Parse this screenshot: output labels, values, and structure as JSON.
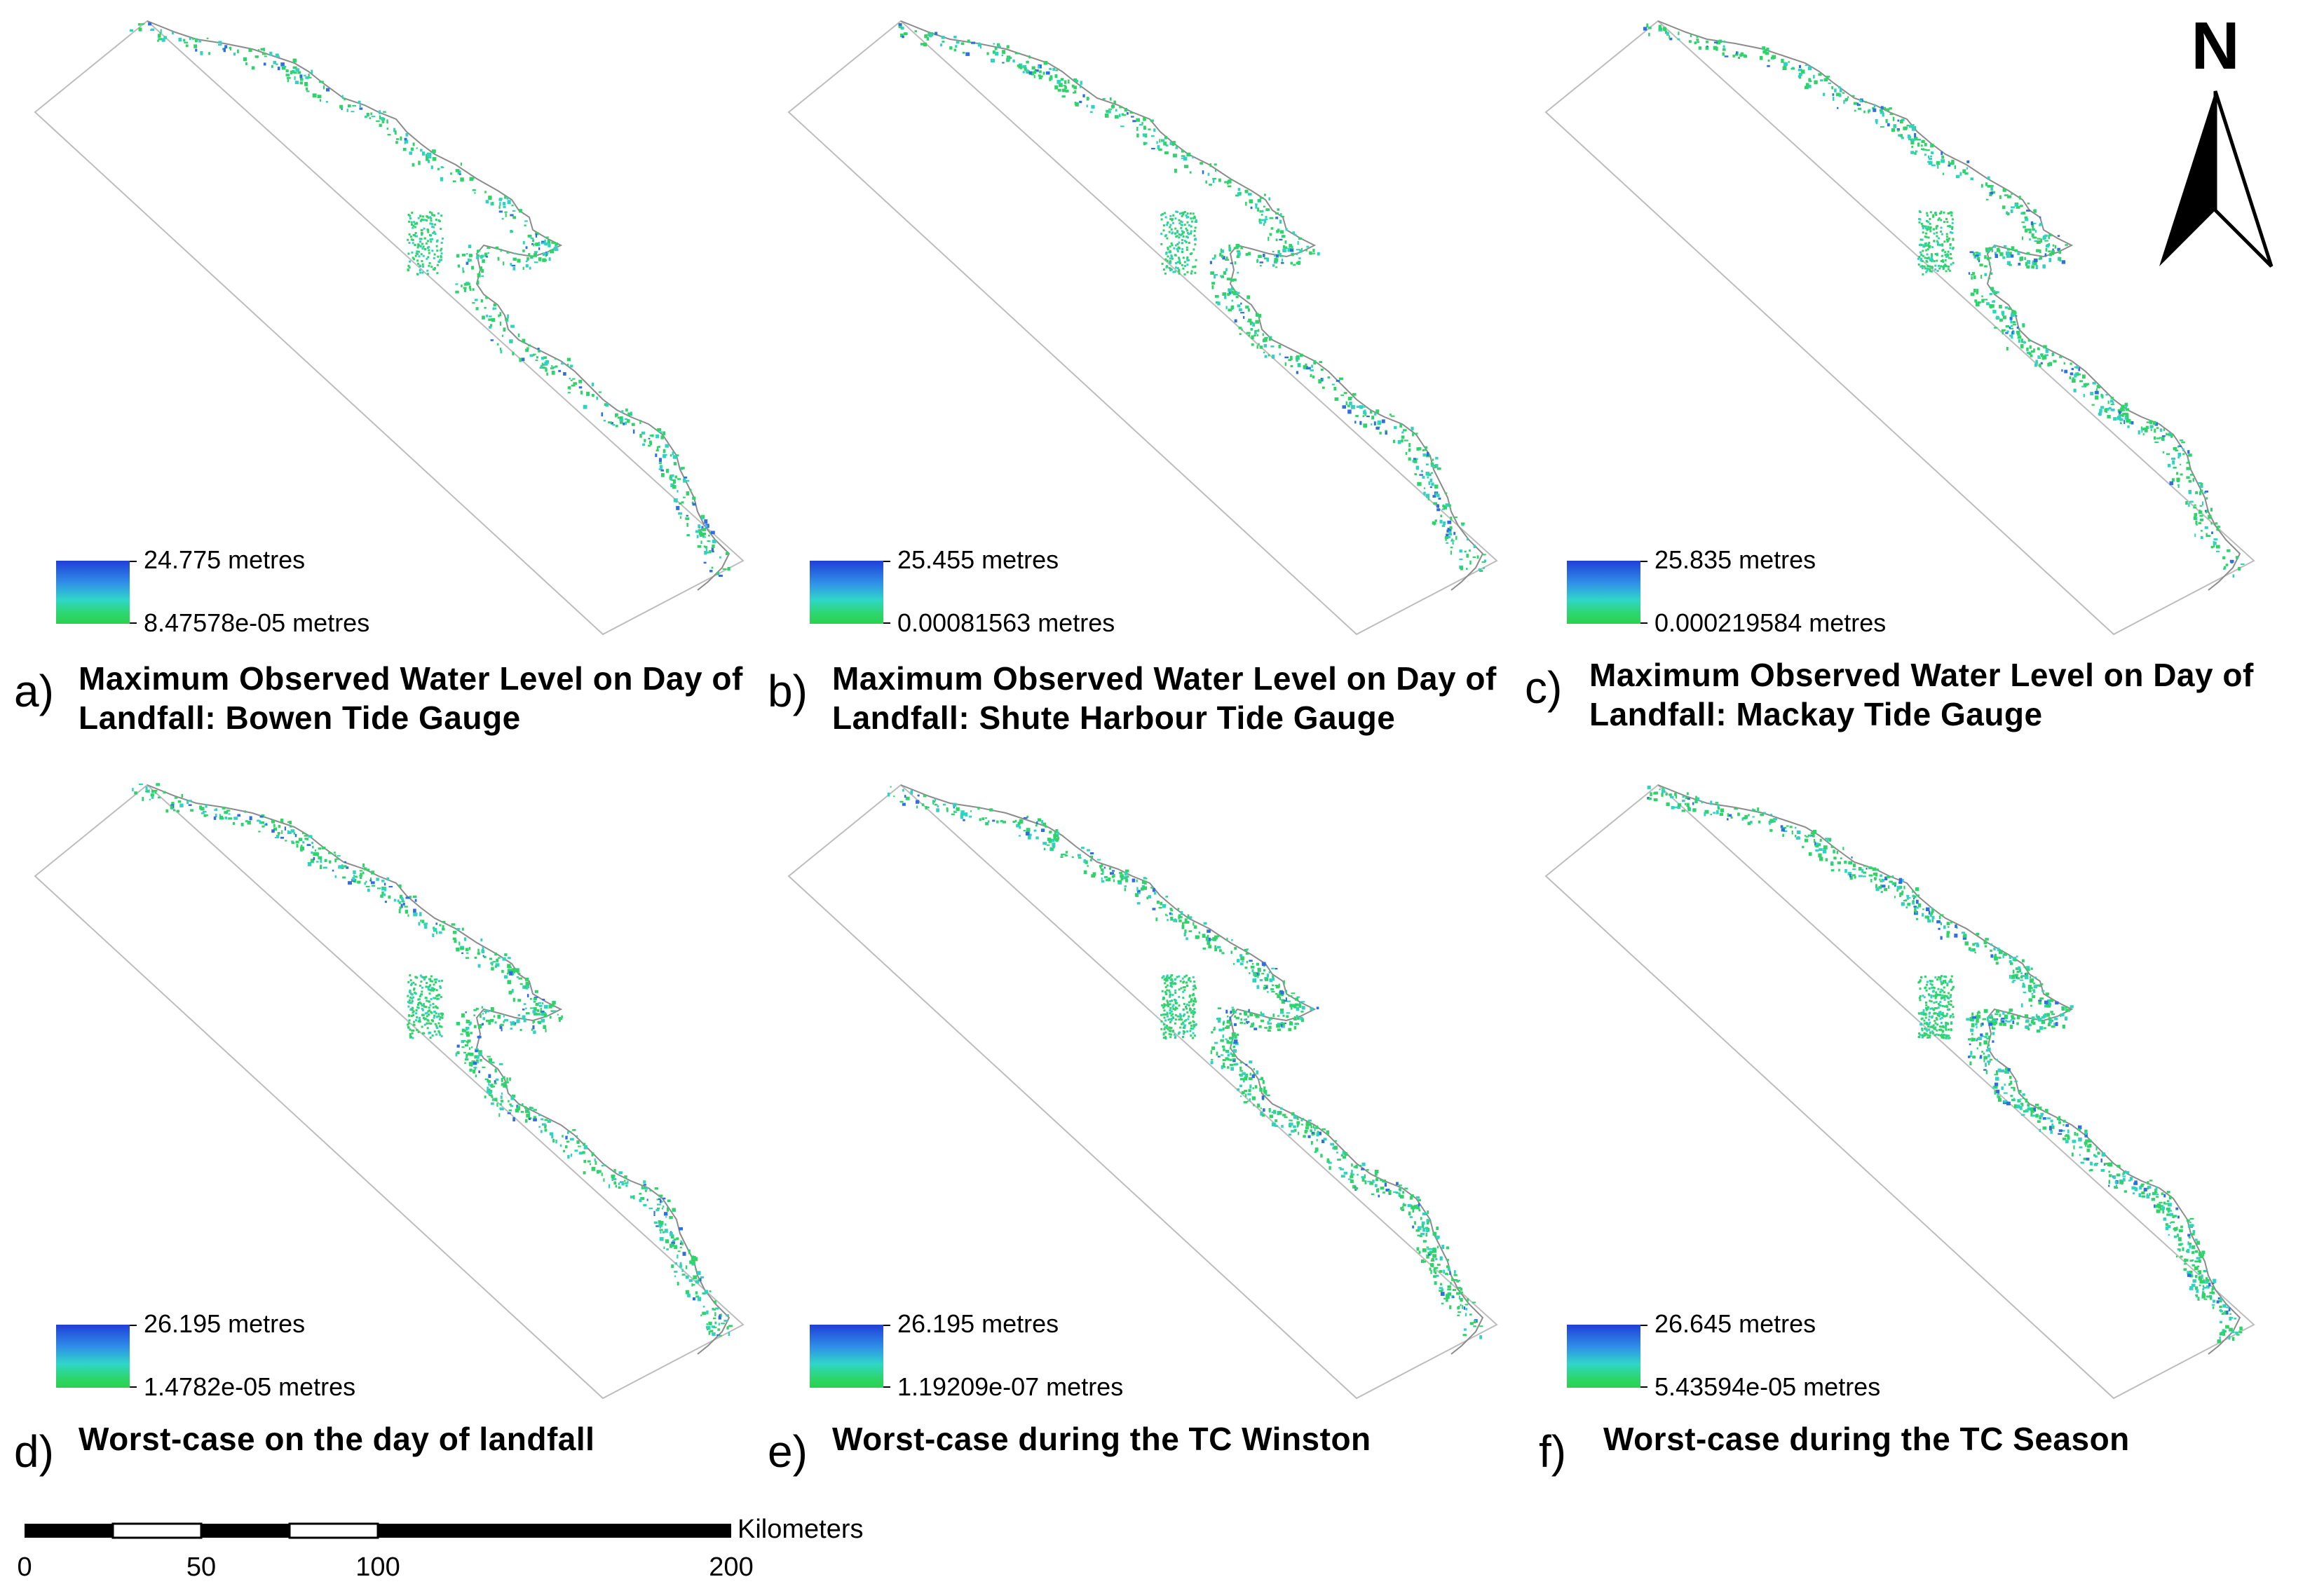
{
  "north_arrow": {
    "label": "N"
  },
  "scale_bar": {
    "unit_label": "Kilometers",
    "ticks": [
      "0",
      "50",
      "100",
      "200"
    ]
  },
  "legend_colors": {
    "high": "#1f3fd8",
    "low": "#2ad14e"
  },
  "panels": [
    {
      "letter": "a)",
      "title": "Maximum Observed Water Level on Day of Landfall: Bowen Tide Gauge",
      "legend_max": "24.775 metres",
      "legend_min": "8.47578e-05 metres"
    },
    {
      "letter": "b)",
      "title": "Maximum Observed Water Level on Day of Landfall: Shute Harbour Tide Gauge",
      "legend_max": "25.455 metres",
      "legend_min": "0.00081563 metres"
    },
    {
      "letter": "c)",
      "title": "Maximum Observed Water Level on Day of Landfall: Mackay Tide Gauge",
      "legend_max": "25.835 metres",
      "legend_min": "0.000219584 metres"
    },
    {
      "letter": "d)",
      "title": "Worst-case on the day of landfall",
      "legend_max": "26.195 metres",
      "legend_min": "1.4782e-05 metres"
    },
    {
      "letter": "e)",
      "title": "Worst-case during the TC Winston",
      "legend_max": "26.195 metres",
      "legend_min": "1.19209e-07 metres"
    },
    {
      "letter": "f)",
      "title": "Worst-case during the TC Season",
      "legend_max": "26.645 metres",
      "legend_min": "5.43594e-05 metres"
    }
  ]
}
